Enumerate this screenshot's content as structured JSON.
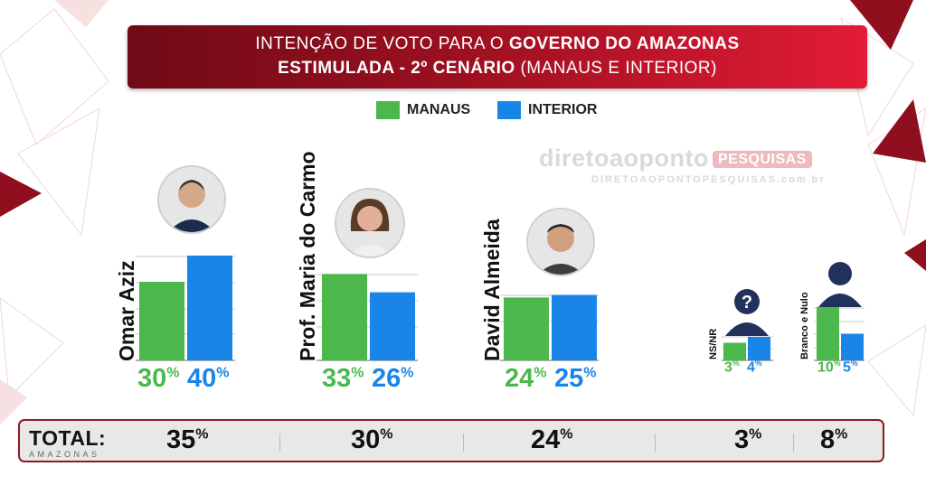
{
  "title": {
    "line1_regular": "INTENÇÃO DE VOTO PARA O ",
    "line1_bold": "GOVERNO DO AMAZONAS",
    "line2_bold": "ESTIMULADA - 2º CENÁRIO",
    "line2_regular": " (MANAUS E INTERIOR)"
  },
  "watermark": {
    "brand": "diretoaoponto",
    "badge": "PESQUISAS",
    "url": "DIRETOAOPONTOPESQUISAS.com.br"
  },
  "colors": {
    "manaus": "#4cb84c",
    "interior": "#1a85e8",
    "banner": "#b01326"
  },
  "chart_data": {
    "type": "bar",
    "categories": [
      "Omar Aziz",
      "Prof. Maria do Carmo",
      "David  Almeida",
      "NS/NR",
      "Branco e Nulo"
    ],
    "series": [
      {
        "name": "MANAUS",
        "values": [
          30,
          33,
          24,
          3,
          10
        ]
      },
      {
        "name": "INTERIOR",
        "values": [
          40,
          26,
          25,
          4,
          5
        ]
      }
    ],
    "value_suffix": "%",
    "legend_position": "top-center",
    "grid": true
  },
  "total": {
    "label": "TOTAL:",
    "sublabel": "AMAZONAS",
    "values": [
      "35",
      "30",
      "24",
      "3",
      "8"
    ],
    "suffix": "%"
  }
}
